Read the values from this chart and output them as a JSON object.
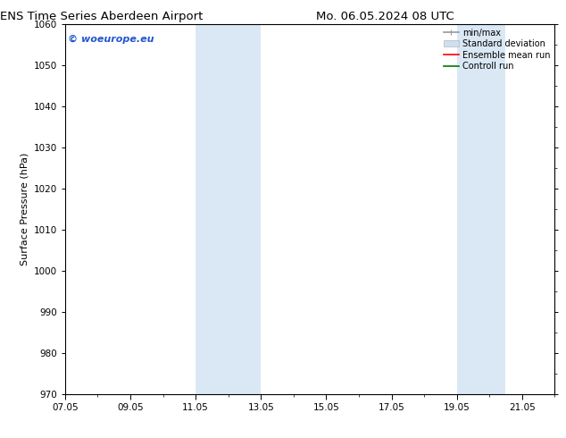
{
  "title_left": "ENS Time Series Aberdeen Airport",
  "title_right": "Mo. 06.05.2024 08 UTC",
  "ylabel": "Surface Pressure (hPa)",
  "ylim": [
    970,
    1060
  ],
  "yticks": [
    970,
    980,
    990,
    1000,
    1010,
    1020,
    1030,
    1040,
    1050,
    1060
  ],
  "x_min": 0,
  "x_max": 15,
  "xtick_labels": [
    "07.05",
    "09.05",
    "11.05",
    "13.05",
    "15.05",
    "17.05",
    "19.05",
    "21.05"
  ],
  "xtick_positions": [
    0,
    2,
    4,
    6,
    8,
    10,
    12,
    14
  ],
  "shaded_bands": [
    {
      "x_start": 4,
      "x_end": 6,
      "color": "#dae8f5"
    },
    {
      "x_start": 12,
      "x_end": 13.5,
      "color": "#dae8f5"
    }
  ],
  "legend_entries": [
    {
      "label": "min/max",
      "color": "#999999",
      "lw": 1.2
    },
    {
      "label": "Standard deviation",
      "color": "#cce0f0",
      "lw": 8
    },
    {
      "label": "Ensemble mean run",
      "color": "#ff0000",
      "lw": 1.2
    },
    {
      "label": "Controll run",
      "color": "#007700",
      "lw": 1.2
    }
  ],
  "watermark": "© woeurope.eu",
  "watermark_color": "#2255cc",
  "background_color": "#ffffff",
  "title_fontsize": 9.5,
  "ylabel_fontsize": 8,
  "tick_fontsize": 7.5,
  "legend_fontsize": 7,
  "border_color": "#000000",
  "border_lw": 0.8
}
